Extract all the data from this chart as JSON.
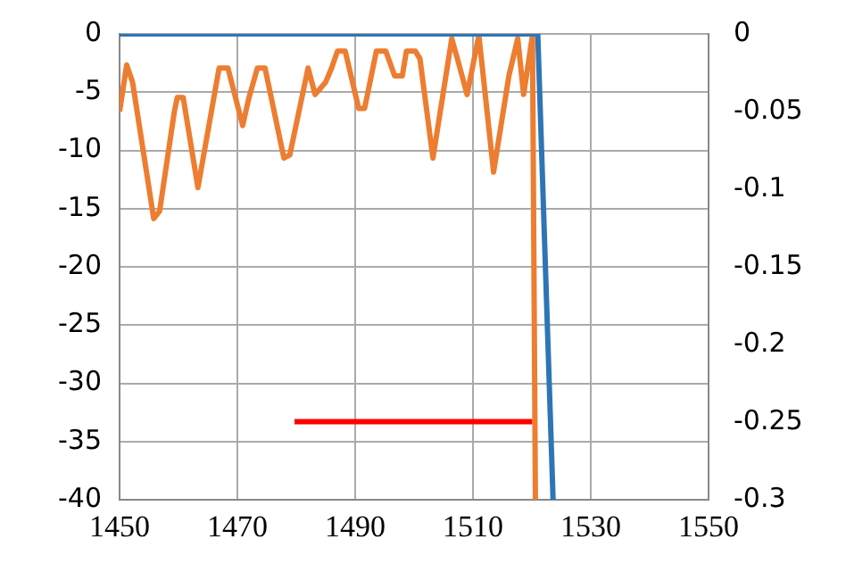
{
  "chart_data": {
    "type": "line",
    "xlim": [
      1450,
      1550
    ],
    "xticks": [
      1450,
      1470,
      1490,
      1510,
      1530,
      1550
    ],
    "ylim": [
      -40,
      0
    ],
    "yticks": [
      -40,
      -35,
      -30,
      -25,
      -20,
      -15,
      -10,
      -5,
      0
    ],
    "y2lim": [
      -0.3,
      0
    ],
    "y2ticks": [
      -0.3,
      -0.25,
      -0.2,
      -0.15,
      -0.1,
      -0.05,
      0
    ],
    "grid": true,
    "marker": "none",
    "series": [
      {
        "color": "#2e75b6",
        "axis": "y",
        "x": [
          1450,
          1470,
          1490,
          1510,
          1521,
          1523.6
        ],
        "values": [
          0,
          0,
          0,
          0,
          0,
          -40
        ]
      },
      {
        "color": "#ed7d31",
        "axis": "y2",
        "x": [
          1450,
          1451.2,
          1452.2,
          1455.8,
          1456.8,
          1459.3,
          1459.8,
          1460.8,
          1463.3,
          1466.9,
          1468.4,
          1470.9,
          1471.9,
          1473.4,
          1474.7,
          1477.9,
          1478.9,
          1482,
          1483.2,
          1485,
          1486,
          1487,
          1488.3,
          1490.6,
          1491.6,
          1493.6,
          1495.2,
          1496.7,
          1498,
          1498.7,
          1500.2,
          1501,
          1503.2,
          1506.4,
          1507.5,
          1509,
          1511,
          1513.5,
          1516.1,
          1517.6,
          1518.6,
          1520.1,
          1520.6
        ],
        "values": [
          -0.05,
          -0.02,
          -0.031,
          -0.119,
          -0.114,
          -0.05,
          -0.041,
          -0.041,
          -0.099,
          -0.022,
          -0.022,
          -0.059,
          -0.042,
          -0.022,
          -0.022,
          -0.08,
          -0.078,
          -0.022,
          -0.039,
          -0.031,
          -0.022,
          -0.011,
          -0.011,
          -0.048,
          -0.048,
          -0.011,
          -0.011,
          -0.027,
          -0.027,
          -0.011,
          -0.011,
          -0.016,
          -0.08,
          -0.003,
          -0.018,
          -0.039,
          -0.001,
          -0.089,
          -0.027,
          -0.003,
          -0.039,
          -0.001,
          -0.3
        ]
      },
      {
        "color": "#ff0000",
        "axis": "y",
        "x": [
          1479.7,
          1520.1
        ],
        "values": [
          -33.3,
          -33.3
        ]
      }
    ]
  }
}
